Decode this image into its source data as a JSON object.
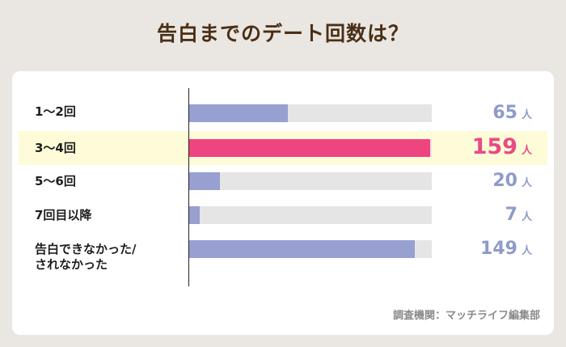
{
  "chart_data": {
    "type": "bar",
    "orientation": "horizontal",
    "title": "告白までのデート回数は？",
    "categories": [
      "1〜2回",
      "3〜4回",
      "5〜6回",
      "7回目以降",
      "告白できなかった/\nされなかった"
    ],
    "values": [
      65,
      159,
      20,
      7,
      149
    ],
    "unit": "人",
    "highlight_index": 1,
    "xlim": [
      0,
      160
    ],
    "grid": false,
    "colors": {
      "bar": "#97a0d1",
      "highlight_bar": "#ee4580",
      "track": "#e5e5e5",
      "value": "#8f9bc8",
      "highlight_value": "#e94a85"
    }
  },
  "source": "調査機関：マッチライフ編集部"
}
